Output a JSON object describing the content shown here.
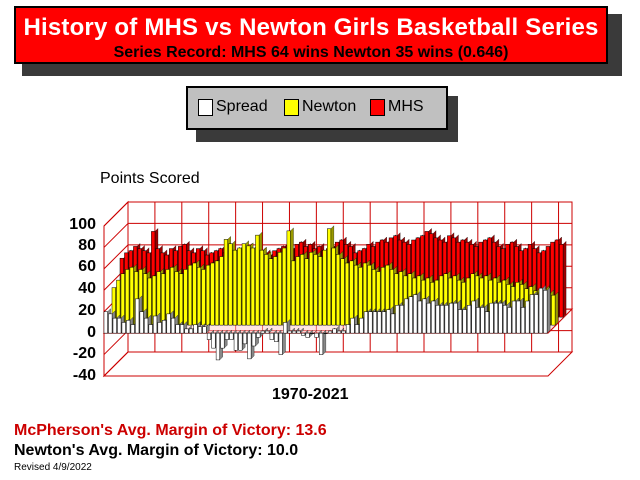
{
  "title": "History of MHS vs Newton Girls Basketball Series",
  "subtitle": "Series Record:  MHS 64 wins  Newton 35 wins  (0.646)",
  "legend": [
    {
      "name": "Spread",
      "color": "#ffffff"
    },
    {
      "name": "Newton",
      "color": "#ffff00"
    },
    {
      "name": "MHS",
      "color": "#ff0000"
    }
  ],
  "notes": {
    "mcpherson_margin": "McPherson's Avg. Margin of Victory: 13.6",
    "newton_margin": "Newton's Avg. Margin of Victory: 10.0",
    "revised": "Revised 4/9/2022"
  },
  "chart_data": {
    "type": "bar",
    "title": "History of MHS vs Newton Girls Basketball Series",
    "ylabel": "Points Scored",
    "xlabel": "1970-2021",
    "ylim": [
      -40,
      100
    ],
    "yticks": [
      "100",
      "80",
      "60",
      "40",
      "20",
      "0",
      "-20",
      "-40"
    ],
    "grid": true,
    "legend_position": "top-center",
    "series": [
      {
        "name": "MHS",
        "color": "#ff0000",
        "values": [
          55,
          60,
          62,
          66,
          64,
          62,
          60,
          80,
          64,
          60,
          58,
          64,
          62,
          66,
          68,
          62,
          60,
          64,
          62,
          58,
          60,
          62,
          64,
          60,
          58,
          55,
          62,
          64,
          66,
          60,
          58,
          62,
          60,
          58,
          62,
          64,
          66,
          62,
          64,
          68,
          70,
          66,
          68,
          64,
          66,
          62,
          64,
          66,
          70,
          72,
          68,
          66,
          60,
          62,
          64,
          68,
          66,
          70,
          72,
          70,
          74,
          76,
          72,
          70,
          68,
          72,
          74,
          76,
          80,
          78,
          74,
          72,
          70,
          76,
          74,
          70,
          72,
          70,
          68,
          66,
          70,
          72,
          74,
          70,
          66,
          64,
          68,
          70,
          66,
          62,
          64,
          68,
          64,
          60,
          62,
          66,
          70,
          72,
          68
        ]
      },
      {
        "name": "Newton",
        "color": "#ffff00",
        "values": [
          35,
          42,
          48,
          52,
          54,
          50,
          52,
          48,
          44,
          46,
          50,
          48,
          52,
          54,
          50,
          48,
          52,
          56,
          58,
          54,
          52,
          56,
          58,
          60,
          64,
          80,
          76,
          70,
          72,
          76,
          74,
          72,
          84,
          70,
          66,
          62,
          64,
          68,
          72,
          88,
          60,
          64,
          66,
          62,
          68,
          66,
          64,
          70,
          90,
          72,
          66,
          62,
          58,
          60,
          56,
          54,
          58,
          56,
          52,
          50,
          54,
          56,
          52,
          48,
          50,
          46,
          48,
          44,
          46,
          42,
          44,
          40,
          42,
          46,
          48,
          44,
          46,
          42,
          40,
          44,
          48,
          46,
          44,
          46,
          42,
          44,
          40,
          42,
          38,
          36,
          40,
          38,
          34,
          36,
          32,
          30,
          34,
          30,
          28
        ]
      },
      {
        "name": "Spread",
        "color": "#ffffff",
        "values": [
          20,
          18,
          14,
          14,
          10,
          12,
          8,
          32,
          20,
          14,
          8,
          16,
          10,
          12,
          18,
          14,
          8,
          8,
          4,
          4,
          8,
          6,
          6,
          -6,
          -14,
          -25,
          -14,
          -6,
          -6,
          -16,
          -16,
          -10,
          -24,
          -12,
          -4,
          2,
          2,
          -6,
          -8,
          -20,
          10,
          2,
          2,
          2,
          -2,
          -4,
          0,
          -4,
          -20,
          0,
          2,
          4,
          2,
          2,
          8,
          14,
          8,
          14,
          20,
          20,
          20,
          20,
          20,
          22,
          18,
          26,
          26,
          32,
          34,
          36,
          30,
          32,
          28,
          30,
          26,
          26,
          26,
          28,
          28,
          22,
          22,
          26,
          30,
          24,
          24,
          20,
          28,
          28,
          28,
          26,
          24,
          30,
          30,
          24,
          30,
          36,
          36,
          42,
          40
        ]
      }
    ]
  }
}
